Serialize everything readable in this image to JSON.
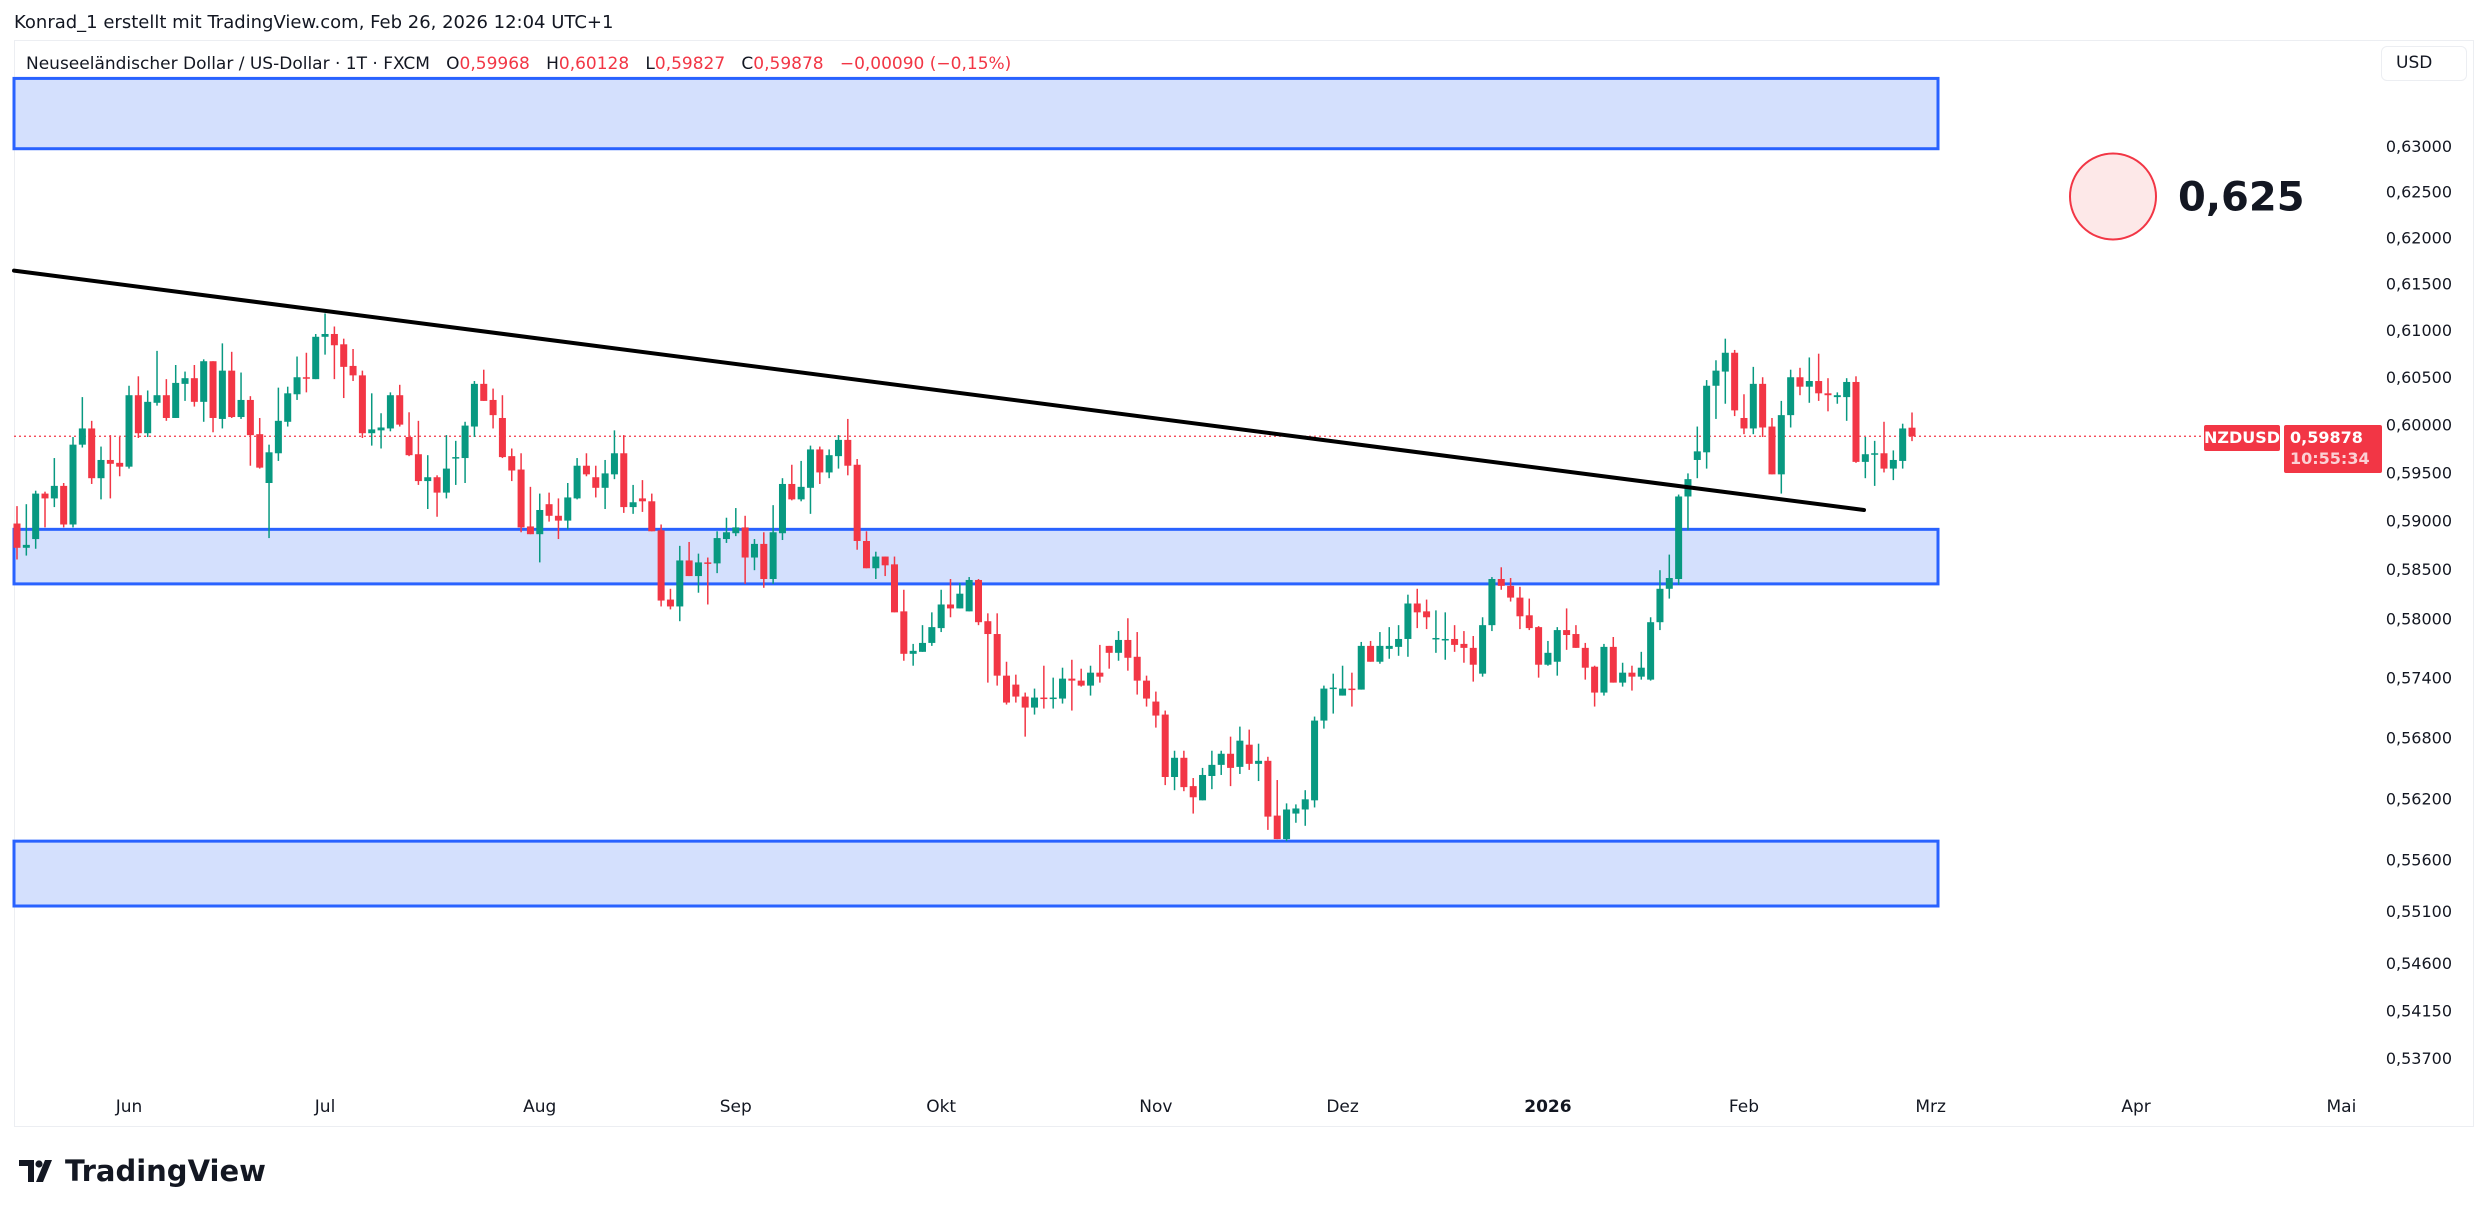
{
  "credit": "Konrad_1 erstellt mit TradingView.com, Feb 26, 2026 12:04 UTC+1",
  "legend": {
    "title": "Neuseeländischer Dollar / US-Dollar · 1T · FXCM",
    "o_label": "O",
    "o_value": "0,59968",
    "h_label": "H",
    "h_value": "0,60128",
    "l_label": "L",
    "l_value": "0,59827",
    "c_label": "C",
    "c_value": "0,59878",
    "change": "−0,00090 (−0,15%)"
  },
  "currency_button": "USD",
  "last_price": {
    "symbol": "NZDUSD",
    "price": "0,59878",
    "countdown": "10:55:34"
  },
  "logo_text": "TradingView",
  "colors": {
    "up": "#089981",
    "down": "#f23645",
    "zone_fill": "#d4e0fd",
    "zone_stroke": "#2962ff",
    "trendline": "#000000",
    "last_price": "#f23645",
    "marker_fill": "#fde8e8",
    "marker_stroke": "#f23645"
  },
  "chart_data": {
    "type": "candlestick",
    "symbol": "NZDUSD",
    "interval": "1T",
    "y_scale": "log",
    "grid": false,
    "y_ticks": [
      "0,63000",
      "0,62500",
      "0,62000",
      "0,61500",
      "0,61000",
      "0,60500",
      "0,60000",
      "0,59500",
      "0,59000",
      "0,58500",
      "0,58000",
      "0,57400",
      "0,56800",
      "0,56200",
      "0,55600",
      "0,55100",
      "0,54600",
      "0,54150",
      "0,53700"
    ],
    "y_tick_values": [
      0.63,
      0.625,
      0.62,
      0.615,
      0.61,
      0.605,
      0.6,
      0.595,
      0.59,
      0.585,
      0.58,
      0.574,
      0.568,
      0.562,
      0.556,
      0.551,
      0.546,
      0.5415,
      0.537
    ],
    "x_ticks": [
      {
        "label": "Jun",
        "bold": false
      },
      {
        "label": "Jul",
        "bold": false
      },
      {
        "label": "Aug",
        "bold": false
      },
      {
        "label": "Sep",
        "bold": false
      },
      {
        "label": "Okt",
        "bold": false
      },
      {
        "label": "Nov",
        "bold": false
      },
      {
        "label": "Dez",
        "bold": false
      },
      {
        "label": "2026",
        "bold": true
      },
      {
        "label": "Feb",
        "bold": false
      },
      {
        "label": "Mrz",
        "bold": false
      },
      {
        "label": "Apr",
        "bold": false
      },
      {
        "label": "Mai",
        "bold": false
      }
    ],
    "last_price": 0.59878,
    "zones": [
      {
        "top": 0.6375,
        "bottom": 0.6297
      },
      {
        "top": 0.5891,
        "bottom": 0.5835
      },
      {
        "top": 0.5578,
        "bottom": 0.5515
      }
    ],
    "trendline": {
      "start_price": 0.6164,
      "end_price": 0.5911
    },
    "annotation": {
      "text": "0,625",
      "price": 0.625
    },
    "candles_ohlc": [
      [
        0.5897,
        0.5915,
        0.586,
        0.5872
      ],
      [
        0.5872,
        0.5917,
        0.5864,
        0.5875
      ],
      [
        0.5881,
        0.5931,
        0.5871,
        0.5928
      ],
      [
        0.5928,
        0.593,
        0.5893,
        0.5923
      ],
      [
        0.5923,
        0.5965,
        0.5914,
        0.5936
      ],
      [
        0.5936,
        0.5939,
        0.5893,
        0.5896
      ],
      [
        0.5896,
        0.5987,
        0.5893,
        0.5979
      ],
      [
        0.5979,
        0.6029,
        0.5976,
        0.5996
      ],
      [
        0.5996,
        0.6004,
        0.5938,
        0.5944
      ],
      [
        0.5944,
        0.5977,
        0.5922,
        0.5963
      ],
      [
        0.5963,
        0.5989,
        0.5923,
        0.5959
      ],
      [
        0.596,
        0.5987,
        0.5946,
        0.5956
      ],
      [
        0.5956,
        0.6041,
        0.5954,
        0.6031
      ],
      [
        0.6031,
        0.6051,
        0.5986,
        0.5991
      ],
      [
        0.5991,
        0.6036,
        0.5987,
        0.6024
      ],
      [
        0.6023,
        0.6078,
        0.602,
        0.6031
      ],
      [
        0.6031,
        0.6048,
        0.6004,
        0.6007
      ],
      [
        0.6007,
        0.6063,
        0.6007,
        0.6044
      ],
      [
        0.6043,
        0.6056,
        0.6025,
        0.6049
      ],
      [
        0.6049,
        0.6063,
        0.6019,
        0.6024
      ],
      [
        0.6024,
        0.6069,
        0.6003,
        0.6067
      ],
      [
        0.6067,
        0.6067,
        0.5992,
        0.6007
      ],
      [
        0.6006,
        0.6086,
        0.5996,
        0.6057
      ],
      [
        0.6057,
        0.6077,
        0.6007,
        0.6008
      ],
      [
        0.6008,
        0.6055,
        0.6006,
        0.6026
      ],
      [
        0.6026,
        0.603,
        0.5957,
        0.5989
      ],
      [
        0.599,
        0.6007,
        0.5954,
        0.5955
      ],
      [
        0.5939,
        0.5979,
        0.5882,
        0.5971
      ],
      [
        0.597,
        0.6039,
        0.5962,
        0.6004
      ],
      [
        0.6003,
        0.604,
        0.5998,
        0.6033
      ],
      [
        0.6032,
        0.6072,
        0.6026,
        0.605
      ],
      [
        0.605,
        0.6076,
        0.6034,
        0.6049
      ],
      [
        0.6048,
        0.6096,
        0.6048,
        0.6093
      ],
      [
        0.6093,
        0.6118,
        0.6074,
        0.6096
      ],
      [
        0.6096,
        0.6104,
        0.6048,
        0.6084
      ],
      [
        0.6085,
        0.6091,
        0.6028,
        0.6061
      ],
      [
        0.6062,
        0.608,
        0.6046,
        0.6052
      ],
      [
        0.6052,
        0.6057,
        0.5986,
        0.5991
      ],
      [
        0.5991,
        0.6033,
        0.5978,
        0.5995
      ],
      [
        0.5994,
        0.6012,
        0.5975,
        0.5997
      ],
      [
        0.5996,
        0.6034,
        0.5993,
        0.6031
      ],
      [
        0.6031,
        0.6042,
        0.5998,
        0.6
      ],
      [
        0.5987,
        0.6013,
        0.5967,
        0.5968
      ],
      [
        0.5969,
        0.6004,
        0.5937,
        0.5941
      ],
      [
        0.5941,
        0.5968,
        0.5912,
        0.5945
      ],
      [
        0.5945,
        0.5947,
        0.5904,
        0.5929
      ],
      [
        0.5929,
        0.5989,
        0.5923,
        0.5954
      ],
      [
        0.5965,
        0.5983,
        0.5937,
        0.5966
      ],
      [
        0.5965,
        0.6003,
        0.5939,
        0.5999
      ],
      [
        0.5998,
        0.6046,
        0.5987,
        0.6043
      ],
      [
        0.6043,
        0.6058,
        0.6025,
        0.6025
      ],
      [
        0.6026,
        0.6038,
        0.5996,
        0.601
      ],
      [
        0.6007,
        0.6031,
        0.5965,
        0.5966
      ],
      [
        0.5967,
        0.5975,
        0.5941,
        0.5952
      ],
      [
        0.5953,
        0.597,
        0.5888,
        0.5893
      ],
      [
        0.5894,
        0.5935,
        0.5886,
        0.5886
      ],
      [
        0.5886,
        0.5928,
        0.5857,
        0.5911
      ],
      [
        0.5917,
        0.5929,
        0.5899,
        0.5905
      ],
      [
        0.5905,
        0.5923,
        0.5881,
        0.59
      ],
      [
        0.59,
        0.5939,
        0.5891,
        0.5924
      ],
      [
        0.5923,
        0.5965,
        0.5922,
        0.5957
      ],
      [
        0.5957,
        0.597,
        0.5946,
        0.5948
      ],
      [
        0.5945,
        0.5957,
        0.5924,
        0.5934
      ],
      [
        0.5934,
        0.5963,
        0.5912,
        0.5949
      ],
      [
        0.5948,
        0.5994,
        0.5943,
        0.597
      ],
      [
        0.597,
        0.5989,
        0.5908,
        0.5914
      ],
      [
        0.5914,
        0.5937,
        0.5907,
        0.5919
      ],
      [
        0.5923,
        0.5942,
        0.5909,
        0.592
      ],
      [
        0.592,
        0.5928,
        0.5889,
        0.5889
      ],
      [
        0.589,
        0.5896,
        0.5812,
        0.5818
      ],
      [
        0.5819,
        0.583,
        0.5809,
        0.5812
      ],
      [
        0.5812,
        0.5874,
        0.5797,
        0.5859
      ],
      [
        0.5859,
        0.5878,
        0.5843,
        0.5843
      ],
      [
        0.5843,
        0.5866,
        0.5826,
        0.5857
      ],
      [
        0.5857,
        0.5862,
        0.5814,
        0.5856
      ],
      [
        0.5856,
        0.5889,
        0.5846,
        0.5882
      ],
      [
        0.5881,
        0.5903,
        0.5877,
        0.5888
      ],
      [
        0.5887,
        0.5913,
        0.5884,
        0.5893
      ],
      [
        0.5893,
        0.5905,
        0.5835,
        0.5862
      ],
      [
        0.5862,
        0.5881,
        0.5849,
        0.5876
      ],
      [
        0.5876,
        0.5888,
        0.5831,
        0.584
      ],
      [
        0.584,
        0.5916,
        0.5835,
        0.5888
      ],
      [
        0.5887,
        0.5944,
        0.588,
        0.5938
      ],
      [
        0.5938,
        0.5958,
        0.5921,
        0.5922
      ],
      [
        0.5922,
        0.5962,
        0.592,
        0.5935
      ],
      [
        0.5934,
        0.5978,
        0.5907,
        0.5974
      ],
      [
        0.5974,
        0.5977,
        0.5938,
        0.595
      ],
      [
        0.595,
        0.5974,
        0.5944,
        0.5968
      ],
      [
        0.5967,
        0.5989,
        0.5954,
        0.5984
      ],
      [
        0.5984,
        0.6006,
        0.5947,
        0.5957
      ],
      [
        0.5958,
        0.5964,
        0.587,
        0.5879
      ],
      [
        0.5879,
        0.5889,
        0.5851,
        0.5851
      ],
      [
        0.5851,
        0.5868,
        0.584,
        0.5863
      ],
      [
        0.5863,
        0.5863,
        0.5843,
        0.5854
      ],
      [
        0.5855,
        0.5863,
        0.5806,
        0.5806
      ],
      [
        0.5807,
        0.5829,
        0.5757,
        0.5764
      ],
      [
        0.5764,
        0.5774,
        0.5752,
        0.5767
      ],
      [
        0.5766,
        0.5793,
        0.5766,
        0.5775
      ],
      [
        0.5775,
        0.5806,
        0.5772,
        0.5791
      ],
      [
        0.579,
        0.5829,
        0.5786,
        0.5814
      ],
      [
        0.5814,
        0.584,
        0.5801,
        0.581
      ],
      [
        0.581,
        0.5836,
        0.581,
        0.5825
      ],
      [
        0.5807,
        0.5842,
        0.5807,
        0.5839
      ],
      [
        0.5839,
        0.584,
        0.5793,
        0.5796
      ],
      [
        0.5797,
        0.5805,
        0.5735,
        0.5784
      ],
      [
        0.5784,
        0.5805,
        0.5732,
        0.5742
      ],
      [
        0.5742,
        0.5756,
        0.5713,
        0.5715
      ],
      [
        0.5733,
        0.5743,
        0.5715,
        0.5721
      ],
      [
        0.5721,
        0.5725,
        0.5681,
        0.571
      ],
      [
        0.571,
        0.5729,
        0.5703,
        0.572
      ],
      [
        0.572,
        0.5752,
        0.5709,
        0.5719
      ],
      [
        0.5719,
        0.574,
        0.5709,
        0.572
      ],
      [
        0.5719,
        0.575,
        0.5714,
        0.5739
      ],
      [
        0.5739,
        0.5758,
        0.5707,
        0.5737
      ],
      [
        0.5737,
        0.5749,
        0.5731,
        0.5732
      ],
      [
        0.5732,
        0.5752,
        0.5722,
        0.5745
      ],
      [
        0.5745,
        0.5773,
        0.5735,
        0.5741
      ],
      [
        0.5772,
        0.5772,
        0.5749,
        0.5765
      ],
      [
        0.5765,
        0.5787,
        0.5757,
        0.5778
      ],
      [
        0.5778,
        0.58,
        0.5747,
        0.576
      ],
      [
        0.5761,
        0.5786,
        0.5723,
        0.5737
      ],
      [
        0.5737,
        0.5742,
        0.5711,
        0.5719
      ],
      [
        0.5716,
        0.5726,
        0.569,
        0.5702
      ],
      [
        0.5703,
        0.5707,
        0.5633,
        0.5641
      ],
      [
        0.5641,
        0.5667,
        0.5628,
        0.566
      ],
      [
        0.566,
        0.5667,
        0.5627,
        0.5631
      ],
      [
        0.5632,
        0.564,
        0.5605,
        0.5621
      ],
      [
        0.5618,
        0.565,
        0.5618,
        0.5643
      ],
      [
        0.5642,
        0.5667,
        0.5629,
        0.5653
      ],
      [
        0.5653,
        0.5667,
        0.5643,
        0.5664
      ],
      [
        0.5664,
        0.5681,
        0.5632,
        0.565
      ],
      [
        0.5651,
        0.5691,
        0.5644,
        0.5677
      ],
      [
        0.5673,
        0.5688,
        0.5648,
        0.5654
      ],
      [
        0.5654,
        0.5674,
        0.5637,
        0.5657
      ],
      [
        0.5657,
        0.5661,
        0.5589,
        0.5602
      ],
      [
        0.5603,
        0.5638,
        0.558,
        0.558
      ],
      [
        0.558,
        0.5615,
        0.5578,
        0.5609
      ],
      [
        0.5605,
        0.5614,
        0.5596,
        0.561
      ],
      [
        0.5609,
        0.5628,
        0.5593,
        0.5619
      ],
      [
        0.5618,
        0.5701,
        0.5611,
        0.5697
      ],
      [
        0.5697,
        0.5732,
        0.5689,
        0.5729
      ],
      [
        0.5729,
        0.5744,
        0.5704,
        0.573
      ],
      [
        0.5722,
        0.5752,
        0.5722,
        0.5729
      ],
      [
        0.5729,
        0.5745,
        0.5711,
        0.5728
      ],
      [
        0.5728,
        0.5776,
        0.5728,
        0.5772
      ],
      [
        0.5772,
        0.5777,
        0.5756,
        0.5756
      ],
      [
        0.5756,
        0.5786,
        0.5754,
        0.5772
      ],
      [
        0.5769,
        0.5791,
        0.5759,
        0.5772
      ],
      [
        0.5771,
        0.5793,
        0.5762,
        0.5779
      ],
      [
        0.5779,
        0.5824,
        0.5761,
        0.5815
      ],
      [
        0.5815,
        0.583,
        0.579,
        0.5806
      ],
      [
        0.5807,
        0.5819,
        0.5789,
        0.5801
      ],
      [
        0.5779,
        0.5808,
        0.5765,
        0.578
      ],
      [
        0.5779,
        0.5806,
        0.5758,
        0.5779
      ],
      [
        0.5779,
        0.5793,
        0.5766,
        0.5773
      ],
      [
        0.5774,
        0.5787,
        0.5755,
        0.577
      ],
      [
        0.577,
        0.5782,
        0.5736,
        0.5753
      ],
      [
        0.5744,
        0.5801,
        0.5741,
        0.5793
      ],
      [
        0.5793,
        0.5842,
        0.5787,
        0.584
      ],
      [
        0.584,
        0.5852,
        0.5829,
        0.5833
      ],
      [
        0.5833,
        0.5841,
        0.5817,
        0.5821
      ],
      [
        0.5821,
        0.5832,
        0.5789,
        0.5802
      ],
      [
        0.5803,
        0.582,
        0.5788,
        0.579
      ],
      [
        0.5791,
        0.5792,
        0.574,
        0.5753
      ],
      [
        0.5753,
        0.5777,
        0.5752,
        0.5765
      ],
      [
        0.5756,
        0.5791,
        0.5742,
        0.5788
      ],
      [
        0.5788,
        0.581,
        0.5768,
        0.5783
      ],
      [
        0.5784,
        0.5793,
        0.577,
        0.577
      ],
      [
        0.577,
        0.5775,
        0.5738,
        0.575
      ],
      [
        0.5751,
        0.5752,
        0.5711,
        0.5725
      ],
      [
        0.5725,
        0.5774,
        0.5722,
        0.5771
      ],
      [
        0.5771,
        0.5781,
        0.5735,
        0.5735
      ],
      [
        0.5735,
        0.5755,
        0.5731,
        0.5745
      ],
      [
        0.5745,
        0.5752,
        0.5727,
        0.5741
      ],
      [
        0.5741,
        0.5766,
        0.5738,
        0.575
      ],
      [
        0.5738,
        0.5801,
        0.5737,
        0.5796
      ],
      [
        0.5796,
        0.5849,
        0.5788,
        0.583
      ],
      [
        0.583,
        0.5865,
        0.582,
        0.5841
      ],
      [
        0.584,
        0.5927,
        0.5834,
        0.5925
      ],
      [
        0.5925,
        0.5949,
        0.589,
        0.5943
      ],
      [
        0.5963,
        0.5998,
        0.5944,
        0.5972
      ],
      [
        0.5971,
        0.6047,
        0.5954,
        0.6041
      ],
      [
        0.6041,
        0.6068,
        0.6006,
        0.6057
      ],
      [
        0.6056,
        0.6091,
        0.6022,
        0.6076
      ],
      [
        0.6076,
        0.6079,
        0.6009,
        0.6015
      ],
      [
        0.6007,
        0.6032,
        0.599,
        0.5996
      ],
      [
        0.5996,
        0.6061,
        0.599,
        0.6043
      ],
      [
        0.6043,
        0.605,
        0.5987,
        0.5997
      ],
      [
        0.5998,
        0.6007,
        0.5948,
        0.5948
      ],
      [
        0.5948,
        0.6025,
        0.5928,
        0.601
      ],
      [
        0.601,
        0.6058,
        0.5997,
        0.605
      ],
      [
        0.605,
        0.606,
        0.6031,
        0.604
      ],
      [
        0.604,
        0.6071,
        0.6023,
        0.6046
      ],
      [
        0.6046,
        0.6075,
        0.6025,
        0.6033
      ],
      [
        0.6033,
        0.6049,
        0.6014,
        0.6031
      ],
      [
        0.6029,
        0.6034,
        0.6022,
        0.6031
      ],
      [
        0.6029,
        0.6049,
        0.6004,
        0.6045
      ],
      [
        0.6045,
        0.6051,
        0.596,
        0.5961
      ],
      [
        0.5961,
        0.5987,
        0.5944,
        0.5969
      ],
      [
        0.5969,
        0.5983,
        0.5936,
        0.597
      ],
      [
        0.597,
        0.6003,
        0.595,
        0.5954
      ],
      [
        0.5954,
        0.5973,
        0.5942,
        0.5963
      ],
      [
        0.5962,
        0.6001,
        0.5954,
        0.5996
      ],
      [
        0.59968,
        0.60128,
        0.59827,
        0.59878
      ]
    ]
  }
}
